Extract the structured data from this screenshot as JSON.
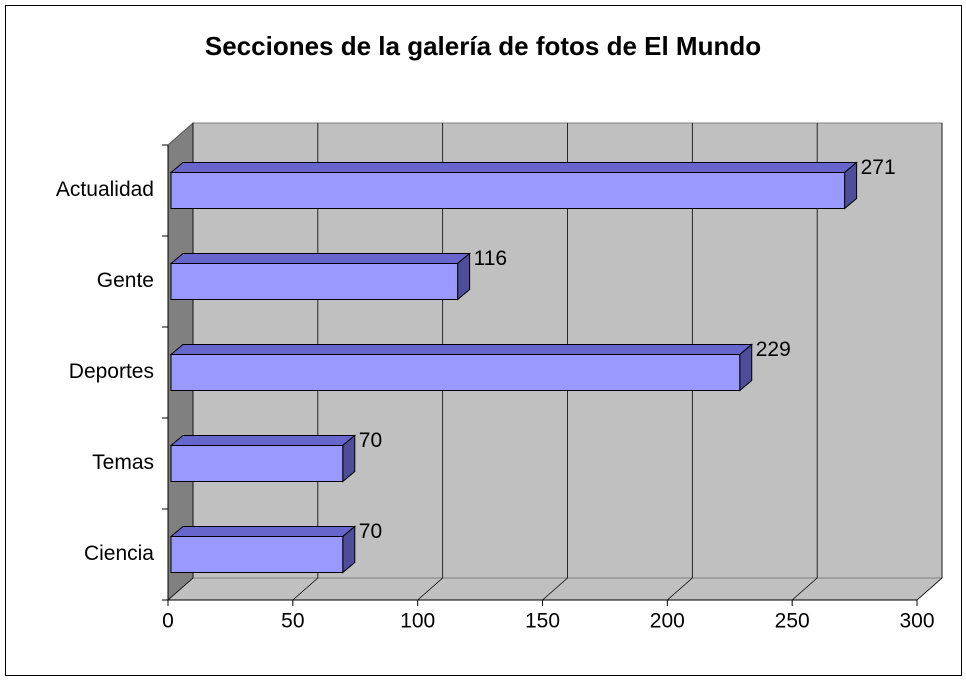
{
  "chart_data": {
    "type": "bar",
    "orientation": "horizontal",
    "title": "Secciones de la galería de fotos de El Mundo",
    "categories": [
      "Actualidad",
      "Gente",
      "Deportes",
      "Temas",
      "Ciencia"
    ],
    "values": [
      271,
      116,
      229,
      70,
      70
    ],
    "color": "#9999ff",
    "xlim": [
      0,
      300
    ],
    "xticks": [
      0,
      50,
      100,
      150,
      200,
      250,
      300
    ],
    "grid": true
  }
}
